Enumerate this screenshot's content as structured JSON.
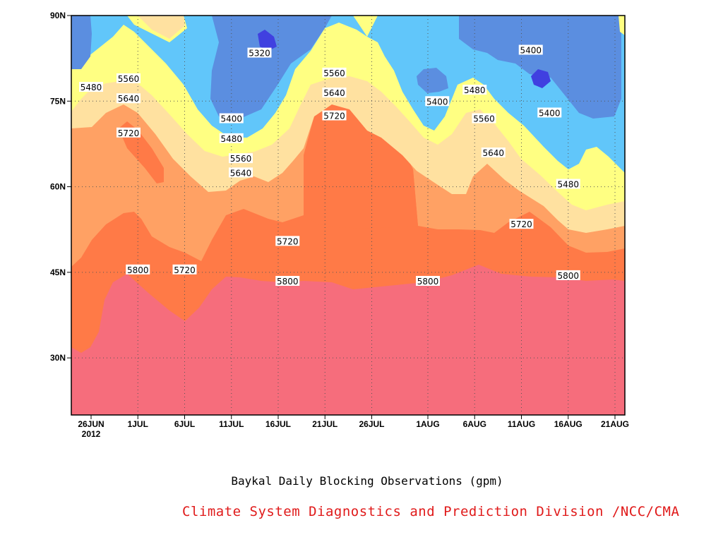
{
  "chart_data": {
    "type": "heatmap",
    "subtype": "filled-contour (time–latitude)",
    "caption": "Baykal Daily Blocking Observations (gpm)",
    "credit": "Climate System Diagnostics and Prediction Division /NCC/CMA",
    "x_ticks": [
      "26JUN",
      "1JUL",
      "6JUL",
      "11JUL",
      "16JUL",
      "21JUL",
      "26JUL",
      "1AUG",
      "6AUG",
      "11AUG",
      "16AUG",
      "21AUG"
    ],
    "x_year_label": "2012",
    "y_ticks": [
      "90N",
      "75N",
      "60N",
      "45N",
      "30N"
    ],
    "ylim": [
      20,
      90
    ],
    "contour_levels": [
      5320,
      5400,
      5480,
      5560,
      5640,
      5720,
      5800
    ],
    "level_colors": {
      "below_5320": "#4040e0",
      "5320_5400": "#5b8ee0",
      "5400_5480": "#61c6fa",
      "5480_5560": "#ffff82",
      "5560_5640": "#ffe1a0",
      "5640_5720": "#ffa164",
      "5720_5800": "#ff7a47",
      "above_5800": "#f66d7c"
    },
    "contour_labels": [
      {
        "value": "5480",
        "date": "26JUN",
        "lat": 77.5
      },
      {
        "value": "5560",
        "date": "30JUN",
        "lat": 79
      },
      {
        "value": "5640",
        "date": "30JUN",
        "lat": 75.5
      },
      {
        "value": "5720",
        "date": "30JUN",
        "lat": 69.5
      },
      {
        "value": "5800",
        "date": "1JUL",
        "lat": 45.5
      },
      {
        "value": "5720",
        "date": "6JUL",
        "lat": 45.5
      },
      {
        "value": "5320",
        "date": "14JUL",
        "lat": 83.5
      },
      {
        "value": "5400",
        "date": "11JUL",
        "lat": 72
      },
      {
        "value": "5480",
        "date": "11JUL",
        "lat": 68.5
      },
      {
        "value": "5560",
        "date": "12JUL",
        "lat": 65
      },
      {
        "value": "5640",
        "date": "12JUL",
        "lat": 62.5
      },
      {
        "value": "5720",
        "date": "17JUL",
        "lat": 50.5
      },
      {
        "value": "5800",
        "date": "17JUL",
        "lat": 43.5
      },
      {
        "value": "5560",
        "date": "22JUL",
        "lat": 80
      },
      {
        "value": "5640",
        "date": "22JUL",
        "lat": 76.5
      },
      {
        "value": "5720",
        "date": "22JUL",
        "lat": 72.5
      },
      {
        "value": "5400",
        "date": "2AUG",
        "lat": 75
      },
      {
        "value": "5800",
        "date": "1AUG",
        "lat": 43.5
      },
      {
        "value": "5480",
        "date": "6AUG",
        "lat": 77
      },
      {
        "value": "5560",
        "date": "7AUG",
        "lat": 72
      },
      {
        "value": "5640",
        "date": "8AUG",
        "lat": 66
      },
      {
        "value": "5720",
        "date": "11AUG",
        "lat": 53.5
      },
      {
        "value": "5400",
        "date": "12AUG",
        "lat": 84
      },
      {
        "value": "5400",
        "date": "14AUG",
        "lat": 73
      },
      {
        "value": "5480",
        "date": "16AUG",
        "lat": 60.5
      },
      {
        "value": "5800",
        "date": "16AUG",
        "lat": 44.5
      }
    ]
  }
}
